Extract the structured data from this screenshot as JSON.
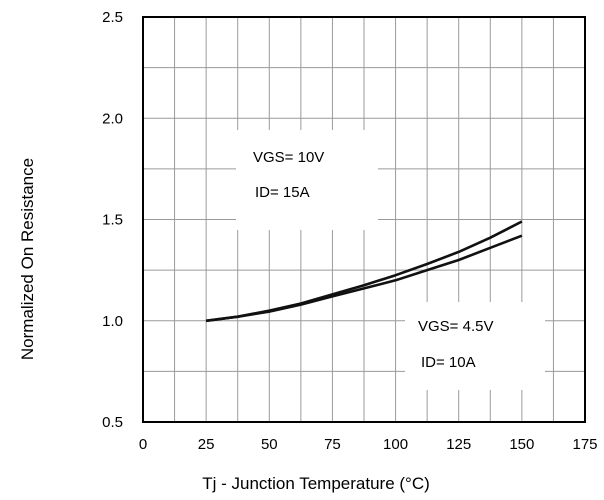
{
  "chart_data": {
    "type": "line",
    "title": "",
    "xlabel": "Tj - Junction Temperature (°C)",
    "ylabel": "Normalized On Resistance",
    "xlim": [
      0,
      175
    ],
    "ylim": [
      0.5,
      2.5
    ],
    "x_ticks": [
      0,
      25,
      50,
      75,
      100,
      125,
      150,
      175
    ],
    "x_tick_labels": [
      "0",
      "25",
      "50",
      "75",
      "100",
      "125",
      "150",
      "175"
    ],
    "y_ticks": [
      0.5,
      1.0,
      1.5,
      2.0,
      2.5
    ],
    "y_tick_labels": [
      "0.5",
      "1.0",
      "1.5",
      "2.0",
      "2.5"
    ],
    "grid": true,
    "series": [
      {
        "x": [
          25,
          37.5,
          50,
          62.5,
          75,
          87.5,
          100,
          112.5,
          125,
          137.5,
          150
        ],
        "y": [
          1.0,
          1.02,
          1.05,
          1.085,
          1.13,
          1.175,
          1.225,
          1.28,
          1.34,
          1.41,
          1.49
        ]
      },
      {
        "x": [
          25,
          37.5,
          50,
          62.5,
          75,
          87.5,
          100,
          112.5,
          125,
          137.5,
          150
        ],
        "y": [
          1.0,
          1.02,
          1.045,
          1.08,
          1.12,
          1.16,
          1.2,
          1.25,
          1.3,
          1.36,
          1.42
        ]
      }
    ],
    "annotations": [
      {
        "lines": [
          "VGS= 10V",
          "ID= 15A"
        ]
      },
      {
        "lines": [
          "VGS= 4.5V",
          "ID= 10A"
        ]
      }
    ]
  }
}
